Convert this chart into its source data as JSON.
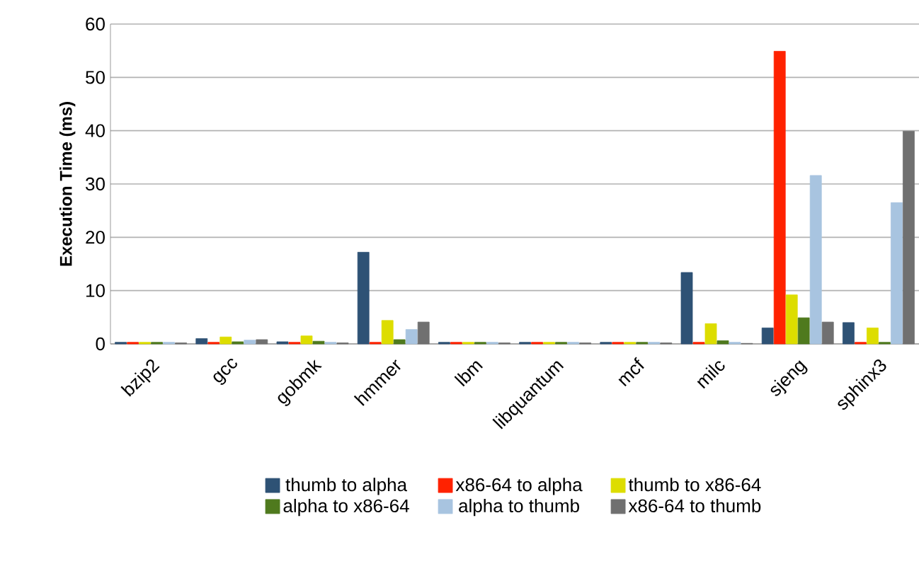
{
  "chart_data": {
    "type": "bar",
    "ylabel": "Execution Time (ms)",
    "categories": [
      "bzip2",
      "gcc",
      "gobmk",
      "hmmer",
      "lbm",
      "libquantum",
      "mcf",
      "milc",
      "sjeng",
      "sphinx3"
    ],
    "series": [
      {
        "name": "thumb to alpha",
        "color": "#2e5275",
        "values": [
          0.3,
          1.0,
          0.4,
          17.2,
          0.3,
          0.3,
          0.3,
          13.4,
          3.0,
          4.0
        ]
      },
      {
        "name": "x86-64 to alpha",
        "color": "#ff2200",
        "values": [
          0.3,
          0.3,
          0.3,
          0.3,
          0.3,
          0.3,
          0.3,
          0.3,
          54.9,
          0.3
        ]
      },
      {
        "name": "thumb to x86-64",
        "color": "#dddd00",
        "values": [
          0.3,
          1.3,
          1.5,
          4.4,
          0.3,
          0.3,
          0.3,
          3.8,
          9.2,
          3.0
        ]
      },
      {
        "name": "alpha to x86-64",
        "color": "#4f7a1e",
        "values": [
          0.3,
          0.4,
          0.5,
          0.8,
          0.3,
          0.3,
          0.3,
          0.6,
          4.9,
          0.3
        ]
      },
      {
        "name": "alpha to thumb",
        "color": "#a8c4e0",
        "values": [
          0.3,
          0.7,
          0.3,
          2.7,
          0.3,
          0.3,
          0.3,
          0.3,
          31.6,
          26.5
        ]
      },
      {
        "name": "x86-64 to thumb",
        "color": "#707070",
        "values": [
          0.2,
          0.8,
          0.2,
          4.1,
          0.2,
          0.2,
          0.2,
          0.1,
          4.1,
          39.9
        ]
      }
    ],
    "ylim": [
      0,
      60
    ],
    "yticks": [
      0,
      10,
      20,
      30,
      40,
      50,
      60
    ],
    "grid": "y",
    "legend": "bottom"
  }
}
